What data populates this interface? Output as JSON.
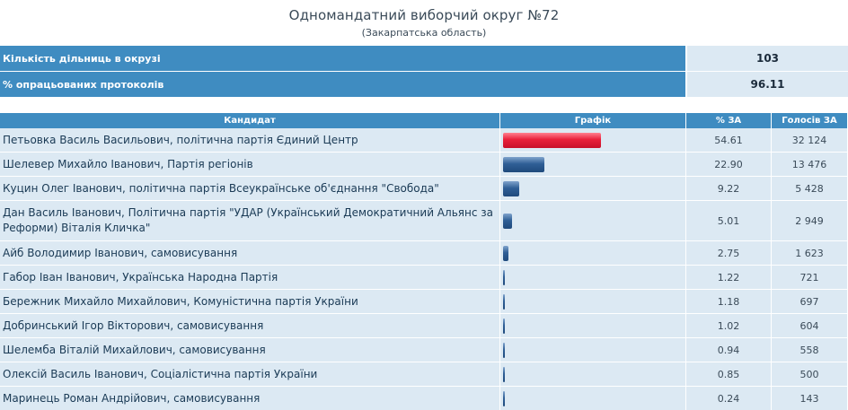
{
  "header": {
    "title": "Одномандатний виборчий округ №72",
    "subtitle": "(Закарпатська область)"
  },
  "summary": [
    {
      "label": "Кількість дільниць в окрузі",
      "value": "103"
    },
    {
      "label": "% опрацьованих протоколів",
      "value": "96.11"
    }
  ],
  "columns": {
    "candidate": "Кандидат",
    "graph": "Графік",
    "percent": "% ЗА",
    "votes": "Голосів ЗА"
  },
  "colors": {
    "header_blue": "#3f8cc1",
    "row_bg": "#dce9f3",
    "leader_bar": "#e8203a",
    "bar_blue": "#2f5f96"
  },
  "candidates": [
    {
      "name": "Петьовка Василь Васильович",
      "party": ", політична партія Єдиний Центр",
      "percent": "54.61",
      "votes": "32 124"
    },
    {
      "name": "Шелевер Михайло Іванович",
      "party": ", Партія регіонів",
      "percent": "22.90",
      "votes": "13 476"
    },
    {
      "name": "Куцин Олег Іванович",
      "party": ", політична партія Всеукраїнське об'єднання \"Свобода\"",
      "percent": "9.22",
      "votes": "5 428"
    },
    {
      "name": "Дан Василь Іванович",
      "party": ", Політична партія \"УДАР (Український Демократичний Альянс за Реформи) Віталія Кличка\"",
      "percent": "5.01",
      "votes": "2 949"
    },
    {
      "name": "Айб Володимир Іванович",
      "party": ", самовисування",
      "percent": "2.75",
      "votes": "1 623"
    },
    {
      "name": "Габор Іван Іванович",
      "party": ", Українська Народна Партія",
      "percent": "1.22",
      "votes": "721"
    },
    {
      "name": "Бережник Михайло Михайлович",
      "party": ", Комуністична партія України",
      "percent": "1.18",
      "votes": "697"
    },
    {
      "name": "Добринський Ігор Вікторович",
      "party": ", самовисування",
      "percent": "1.02",
      "votes": "604"
    },
    {
      "name": "Шелемба Віталій Михайлович",
      "party": ", самовисування",
      "percent": "0.94",
      "votes": "558"
    },
    {
      "name": "Олексій Василь Іванович",
      "party": ", Соціалістична партія України",
      "percent": "0.85",
      "votes": "500"
    },
    {
      "name": "Маринець Роман Андрійович",
      "party": ", самовисування",
      "percent": "0.24",
      "votes": "143"
    }
  ]
}
